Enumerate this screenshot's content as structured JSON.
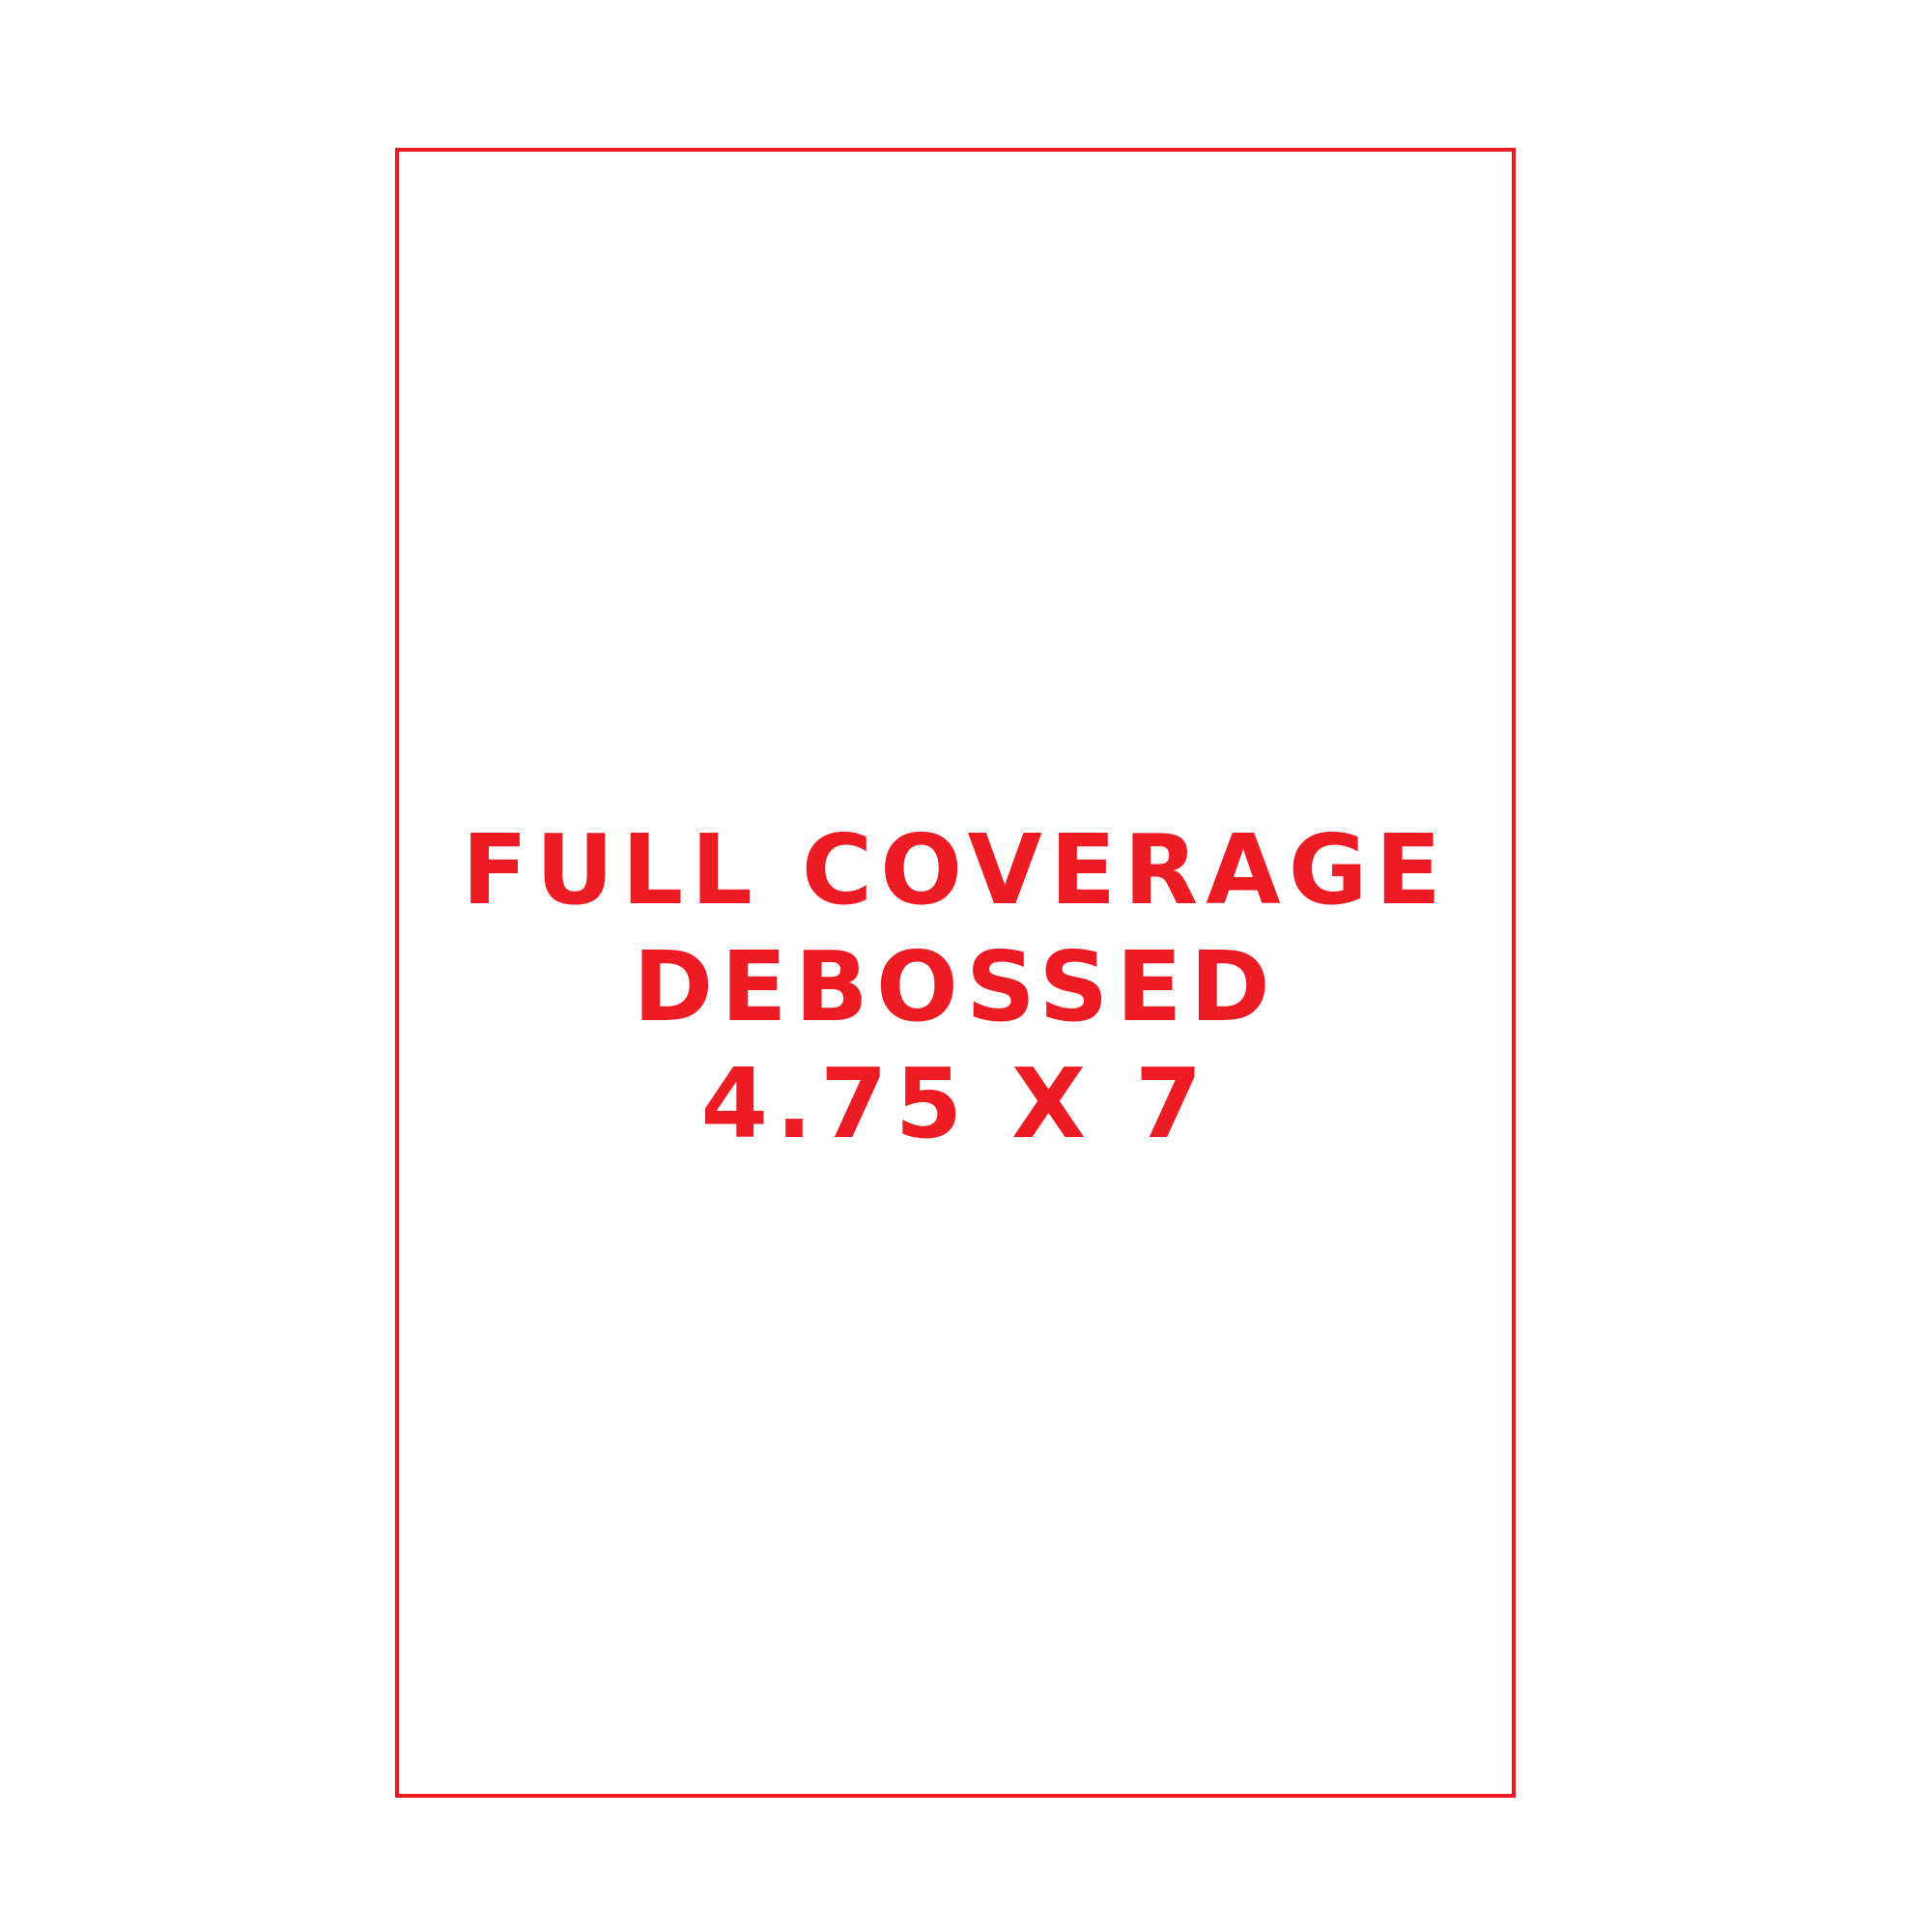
{
  "accent_color": "#ed1c24",
  "template": {
    "lines": [
      "FULL COVERAGE",
      "DEBOSSED",
      "4.75 X 7"
    ]
  }
}
